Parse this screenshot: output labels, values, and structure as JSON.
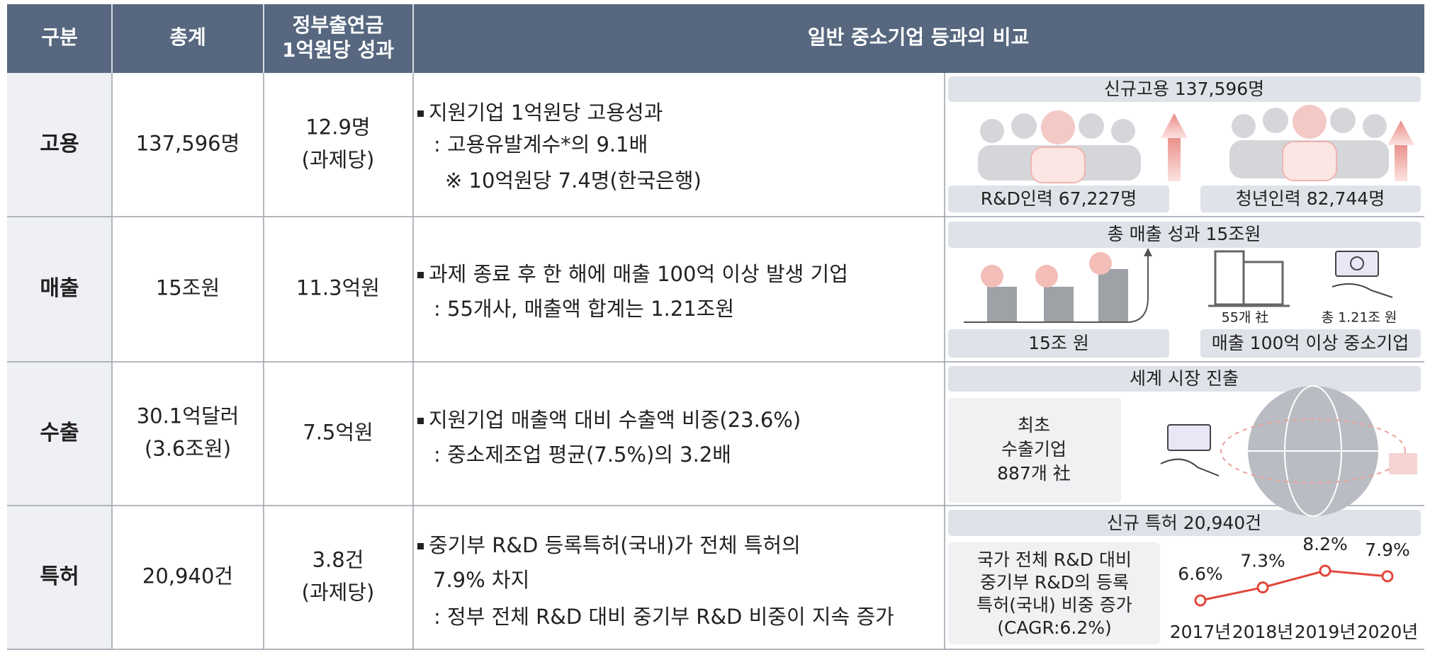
{
  "header": [
    "구분",
    "총계",
    [
      "정부출연금",
      "1억원당 성과"
    ],
    "일반 중소기업 등과의 비교"
  ],
  "rows": [
    {
      "category": "고용",
      "total": [
        "137,596명"
      ],
      "per_unit": [
        "12.9명",
        "(과제당)"
      ],
      "description": [
        "지원기업 1억원당 고용성과",
        ": 고용유발계수*의 9.1배",
        "※ 10억원당 7.4명(한국은행)"
      ],
      "panel": {
        "title": "신규고용 137,596명",
        "labels": [
          "R&D인력 67,227명",
          "청년인력 82,744명"
        ]
      }
    },
    {
      "category": "매출",
      "total": [
        "15조원"
      ],
      "per_unit": [
        "11.3억원"
      ],
      "description": [
        "과제 종료 후 한 해에 매출 100억 이상 발생 기업",
        ": 55개사, 매출액 합계는 1.21조원"
      ],
      "panel": {
        "title": "총 매출 성과 15조원",
        "icon_labels": [
          "55개 社",
          "총 1.21조 원"
        ],
        "labels": [
          "15조 원",
          "매출 100억 이상 중소기업"
        ]
      }
    },
    {
      "category": "수출",
      "total": [
        "30.1억달러",
        "(3.6조원)"
      ],
      "per_unit": [
        "7.5억원"
      ],
      "description": [
        "지원기업 매출액 대비 수출액 비중(23.6%)",
        ": 중소제조업 평균(7.5%)의 3.2배"
      ],
      "panel": {
        "title": "세계 시장 진출",
        "box": [
          "최초",
          "수출기업",
          "887개 社"
        ]
      }
    },
    {
      "category": "특허",
      "total": [
        "20,940건"
      ],
      "per_unit": [
        "3.8건",
        "(과제당)"
      ],
      "description": [
        "중기부 R&D 등록특허(국내)가 전체 특허의",
        "7.9% 차지",
        ": 정부 전체 R&D 대비 중기부 R&D 비중이 지속 증가"
      ],
      "panel": {
        "title": "신규 특허 20,940건",
        "note": [
          "국가 전체 R&D 대비",
          "중기부 R&D의 등록",
          "특허(국내) 비중 증가",
          "(CAGR:6.2%)"
        ]
      }
    }
  ],
  "chart_data": {
    "type": "line",
    "categories": [
      "2017년",
      "2018년",
      "2019년",
      "2020년"
    ],
    "values": [
      6.6,
      7.3,
      8.2,
      7.9
    ],
    "value_labels": [
      "6.6%",
      "7.3%",
      "8.2%",
      "7.9%"
    ],
    "color": "#e0483b"
  }
}
